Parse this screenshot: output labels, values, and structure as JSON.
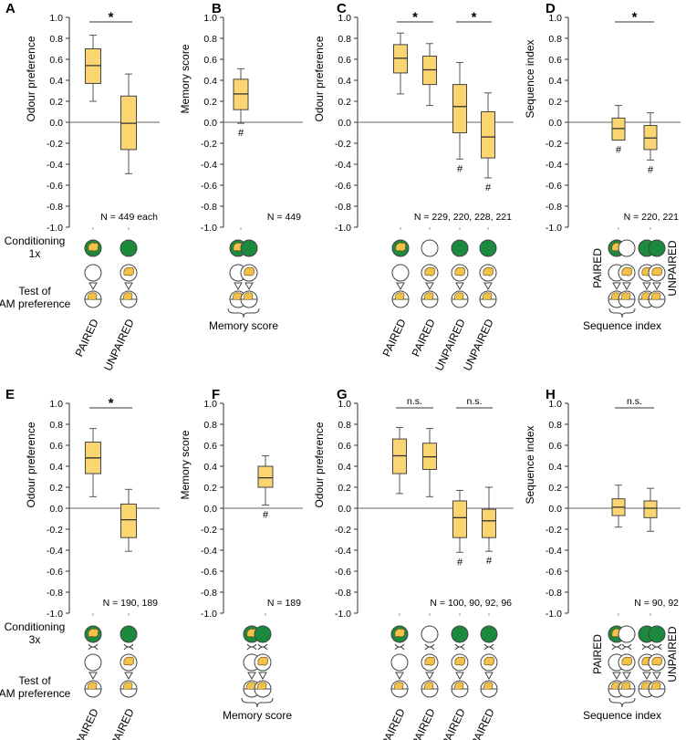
{
  "colors": {
    "box": "#FAD572",
    "green": "#1B8A3E",
    "fly": "#F2C24B"
  },
  "panels": [
    {
      "id": "A",
      "ylabel": "Odour preference",
      "ylim": [
        -1.0,
        1.0
      ],
      "categories": [
        "PAIRED",
        "UNPAIRED"
      ],
      "boxes": [
        {
          "min": 0.2,
          "q1": 0.37,
          "median": 0.54,
          "q3": 0.7,
          "max": 0.83
        },
        {
          "min": -0.49,
          "q1": -0.26,
          "median": -0.01,
          "q3": 0.25,
          "max": 0.46
        }
      ],
      "hashes": [],
      "sig": [
        {
          "from": 0,
          "to": 1,
          "text": "*"
        }
      ],
      "n": "N = 449 each",
      "schematic": [
        "Conditioning",
        "1x",
        "Test of",
        "AM preference"
      ],
      "bracket": ""
    },
    {
      "id": "B",
      "ylabel": "Memory score",
      "ylim": [
        -1.0,
        1.0
      ],
      "categories": [],
      "boxes": [
        {
          "min": -0.01,
          "q1": 0.12,
          "median": 0.27,
          "q3": 0.41,
          "max": 0.51
        }
      ],
      "hashes": [
        "#"
      ],
      "sig": [],
      "n": "N = 449",
      "schematic": [],
      "bracket": "Memory score"
    },
    {
      "id": "C",
      "ylabel": "Odour preference",
      "ylim": [
        -1.0,
        1.0
      ],
      "categories": [
        "PAIRED",
        "PAIRED",
        "UNPAIRED",
        "UNPAIRED"
      ],
      "boxes": [
        {
          "min": 0.27,
          "q1": 0.47,
          "median": 0.61,
          "q3": 0.74,
          "max": 0.85
        },
        {
          "min": 0.16,
          "q1": 0.36,
          "median": 0.5,
          "q3": 0.63,
          "max": 0.75
        },
        {
          "min": -0.35,
          "q1": -0.1,
          "median": 0.15,
          "q3": 0.36,
          "max": 0.57
        },
        {
          "min": -0.53,
          "q1": -0.34,
          "median": -0.14,
          "q3": 0.1,
          "max": 0.28
        }
      ],
      "hashes": [
        "",
        "",
        "#",
        "#"
      ],
      "sig": [
        {
          "from": 0,
          "to": 1,
          "text": "*"
        },
        {
          "from": 2,
          "to": 3,
          "text": "*"
        }
      ],
      "n": "N = 229, 220, 228, 221",
      "schematic": [],
      "bracket": ""
    },
    {
      "id": "D",
      "ylabel": "Sequence index",
      "ylim": [
        -1.0,
        1.0
      ],
      "categories": [
        "PAIRED",
        "UNPAIRED"
      ],
      "boxes": [
        {
          "min": -0.17,
          "q1": -0.17,
          "median": -0.06,
          "q3": 0.04,
          "max": 0.16
        },
        {
          "min": -0.36,
          "q1": -0.26,
          "median": -0.15,
          "q3": -0.03,
          "max": 0.09
        }
      ],
      "hashes": [
        "#",
        "#"
      ],
      "sig": [
        {
          "from": 0,
          "to": 1,
          "text": "*"
        }
      ],
      "n": "N = 220, 221",
      "schematic": [],
      "bracket": "Sequence index"
    },
    {
      "id": "E",
      "ylabel": "Odour preference",
      "ylim": [
        -1.0,
        1.0
      ],
      "categories": [
        "PAIRED",
        "UNPAIRED"
      ],
      "boxes": [
        {
          "min": 0.11,
          "q1": 0.33,
          "median": 0.48,
          "q3": 0.63,
          "max": 0.76
        },
        {
          "min": -0.41,
          "q1": -0.28,
          "median": -0.11,
          "q3": 0.04,
          "max": 0.18
        }
      ],
      "hashes": [],
      "sig": [
        {
          "from": 0,
          "to": 1,
          "text": "*"
        }
      ],
      "n": "N = 190, 189",
      "schematic": [
        "Conditioning",
        "3x",
        "Test of",
        "AM preference"
      ],
      "bracket": ""
    },
    {
      "id": "F",
      "ylabel": "Memory score",
      "ylim": [
        -1.0,
        1.0
      ],
      "categories": [],
      "boxes": [
        {
          "min": 0.03,
          "q1": 0.2,
          "median": 0.29,
          "q3": 0.4,
          "max": 0.5
        }
      ],
      "hashes": [
        "#"
      ],
      "sig": [],
      "n": "N = 189",
      "schematic": [],
      "bracket": "Memory score"
    },
    {
      "id": "G",
      "ylabel": "Odour preference",
      "ylim": [
        -1.0,
        1.0
      ],
      "categories": [
        "PAIRED",
        "PAIRED",
        "UNPAIRED",
        "UNPAIRED"
      ],
      "boxes": [
        {
          "min": 0.14,
          "q1": 0.33,
          "median": 0.5,
          "q3": 0.66,
          "max": 0.77
        },
        {
          "min": 0.11,
          "q1": 0.37,
          "median": 0.49,
          "q3": 0.62,
          "max": 0.76
        },
        {
          "min": -0.42,
          "q1": -0.28,
          "median": -0.09,
          "q3": 0.07,
          "max": 0.17
        },
        {
          "min": -0.41,
          "q1": -0.28,
          "median": -0.12,
          "q3": -0.01,
          "max": 0.2
        }
      ],
      "hashes": [
        "",
        "",
        "#",
        "#"
      ],
      "sig": [
        {
          "from": 0,
          "to": 1,
          "text": "n.s."
        },
        {
          "from": 2,
          "to": 3,
          "text": "n.s."
        }
      ],
      "n": "N = 100, 90, 92, 96",
      "schematic": [],
      "bracket": ""
    },
    {
      "id": "H",
      "ylabel": "Sequence index",
      "ylim": [
        -1.0,
        1.0
      ],
      "categories": [
        "PAIRED",
        "UNPAIRED"
      ],
      "boxes": [
        {
          "min": -0.18,
          "q1": -0.07,
          "median": 0.01,
          "q3": 0.09,
          "max": 0.22
        },
        {
          "min": -0.22,
          "q1": -0.09,
          "median": 0.0,
          "q3": 0.07,
          "max": 0.19
        }
      ],
      "hashes": [],
      "sig": [
        {
          "from": 0,
          "to": 1,
          "text": "n.s."
        }
      ],
      "n": "N = 90, 92",
      "schematic": [],
      "bracket": "Sequence index"
    }
  ],
  "yticks": [
    "1.0",
    "0.8",
    "0.6",
    "0.4",
    "0.2",
    "0.0",
    "-0.2",
    "-0.4",
    "-0.6",
    "-0.8",
    "-1.0"
  ],
  "chart_data": [
    {
      "type": "box",
      "title": "A",
      "ylabel": "Odour preference",
      "ylim": [
        -1.0,
        1.0
      ],
      "categories": [
        "PAIRED",
        "UNPAIRED"
      ],
      "annotation": "N = 449 each",
      "significance": "*"
    },
    {
      "type": "box",
      "title": "B",
      "ylabel": "Memory score",
      "ylim": [
        -1.0,
        1.0
      ],
      "categories": [
        "Memory score"
      ],
      "annotation": "N = 449"
    },
    {
      "type": "box",
      "title": "C",
      "ylabel": "Odour preference",
      "ylim": [
        -1.0,
        1.0
      ],
      "categories": [
        "PAIRED",
        "PAIRED",
        "UNPAIRED",
        "UNPAIRED"
      ],
      "annotation": "N = 229, 220, 228, 221",
      "significance": "*, *"
    },
    {
      "type": "box",
      "title": "D",
      "ylabel": "Sequence index",
      "ylim": [
        -1.0,
        1.0
      ],
      "categories": [
        "PAIRED",
        "UNPAIRED"
      ],
      "annotation": "N = 220, 221",
      "significance": "*"
    },
    {
      "type": "box",
      "title": "E",
      "ylabel": "Odour preference",
      "ylim": [
        -1.0,
        1.0
      ],
      "categories": [
        "PAIRED",
        "UNPAIRED"
      ],
      "annotation": "N = 190, 189",
      "significance": "*"
    },
    {
      "type": "box",
      "title": "F",
      "ylabel": "Memory score",
      "ylim": [
        -1.0,
        1.0
      ],
      "categories": [
        "Memory score"
      ],
      "annotation": "N = 189"
    },
    {
      "type": "box",
      "title": "G",
      "ylabel": "Odour preference",
      "ylim": [
        -1.0,
        1.0
      ],
      "categories": [
        "PAIRED",
        "PAIRED",
        "UNPAIRED",
        "UNPAIRED"
      ],
      "annotation": "N = 100, 90, 92, 96",
      "significance": "n.s., n.s."
    },
    {
      "type": "box",
      "title": "H",
      "ylabel": "Sequence index",
      "ylim": [
        -1.0,
        1.0
      ],
      "categories": [
        "PAIRED",
        "UNPAIRED"
      ],
      "annotation": "N = 90, 92",
      "significance": "n.s."
    }
  ]
}
